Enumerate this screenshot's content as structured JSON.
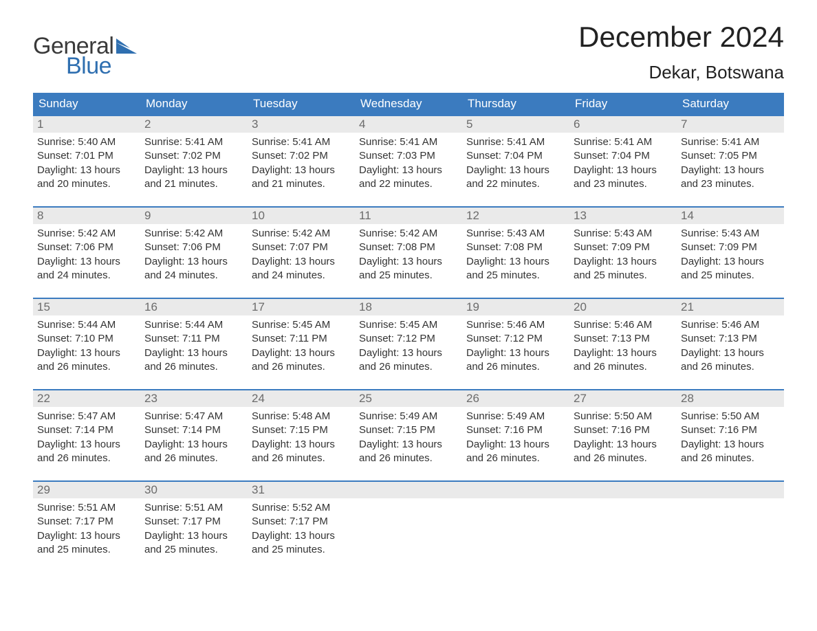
{
  "brand": {
    "word1": "General",
    "word2": "Blue",
    "word1_color": "#3a3a3a",
    "word2_color": "#2f6fb0",
    "flag_color": "#2f6fb0"
  },
  "header": {
    "title": "December 2024",
    "location": "Dekar, Botswana"
  },
  "colors": {
    "header_bg": "#3b7bbf",
    "header_text": "#ffffff",
    "week_border": "#3b7bbf",
    "daynum_bg": "#eaeaea",
    "daynum_text": "#6b6b6b",
    "body_text": "#333333",
    "page_bg": "#ffffff"
  },
  "weekdays": [
    "Sunday",
    "Monday",
    "Tuesday",
    "Wednesday",
    "Thursday",
    "Friday",
    "Saturday"
  ],
  "weeks": [
    [
      {
        "n": "1",
        "sunrise": "5:40 AM",
        "sunset": "7:01 PM",
        "daylight": "13 hours and 20 minutes."
      },
      {
        "n": "2",
        "sunrise": "5:41 AM",
        "sunset": "7:02 PM",
        "daylight": "13 hours and 21 minutes."
      },
      {
        "n": "3",
        "sunrise": "5:41 AM",
        "sunset": "7:02 PM",
        "daylight": "13 hours and 21 minutes."
      },
      {
        "n": "4",
        "sunrise": "5:41 AM",
        "sunset": "7:03 PM",
        "daylight": "13 hours and 22 minutes."
      },
      {
        "n": "5",
        "sunrise": "5:41 AM",
        "sunset": "7:04 PM",
        "daylight": "13 hours and 22 minutes."
      },
      {
        "n": "6",
        "sunrise": "5:41 AM",
        "sunset": "7:04 PM",
        "daylight": "13 hours and 23 minutes."
      },
      {
        "n": "7",
        "sunrise": "5:41 AM",
        "sunset": "7:05 PM",
        "daylight": "13 hours and 23 minutes."
      }
    ],
    [
      {
        "n": "8",
        "sunrise": "5:42 AM",
        "sunset": "7:06 PM",
        "daylight": "13 hours and 24 minutes."
      },
      {
        "n": "9",
        "sunrise": "5:42 AM",
        "sunset": "7:06 PM",
        "daylight": "13 hours and 24 minutes."
      },
      {
        "n": "10",
        "sunrise": "5:42 AM",
        "sunset": "7:07 PM",
        "daylight": "13 hours and 24 minutes."
      },
      {
        "n": "11",
        "sunrise": "5:42 AM",
        "sunset": "7:08 PM",
        "daylight": "13 hours and 25 minutes."
      },
      {
        "n": "12",
        "sunrise": "5:43 AM",
        "sunset": "7:08 PM",
        "daylight": "13 hours and 25 minutes."
      },
      {
        "n": "13",
        "sunrise": "5:43 AM",
        "sunset": "7:09 PM",
        "daylight": "13 hours and 25 minutes."
      },
      {
        "n": "14",
        "sunrise": "5:43 AM",
        "sunset": "7:09 PM",
        "daylight": "13 hours and 25 minutes."
      }
    ],
    [
      {
        "n": "15",
        "sunrise": "5:44 AM",
        "sunset": "7:10 PM",
        "daylight": "13 hours and 26 minutes."
      },
      {
        "n": "16",
        "sunrise": "5:44 AM",
        "sunset": "7:11 PM",
        "daylight": "13 hours and 26 minutes."
      },
      {
        "n": "17",
        "sunrise": "5:45 AM",
        "sunset": "7:11 PM",
        "daylight": "13 hours and 26 minutes."
      },
      {
        "n": "18",
        "sunrise": "5:45 AM",
        "sunset": "7:12 PM",
        "daylight": "13 hours and 26 minutes."
      },
      {
        "n": "19",
        "sunrise": "5:46 AM",
        "sunset": "7:12 PM",
        "daylight": "13 hours and 26 minutes."
      },
      {
        "n": "20",
        "sunrise": "5:46 AM",
        "sunset": "7:13 PM",
        "daylight": "13 hours and 26 minutes."
      },
      {
        "n": "21",
        "sunrise": "5:46 AM",
        "sunset": "7:13 PM",
        "daylight": "13 hours and 26 minutes."
      }
    ],
    [
      {
        "n": "22",
        "sunrise": "5:47 AM",
        "sunset": "7:14 PM",
        "daylight": "13 hours and 26 minutes."
      },
      {
        "n": "23",
        "sunrise": "5:47 AM",
        "sunset": "7:14 PM",
        "daylight": "13 hours and 26 minutes."
      },
      {
        "n": "24",
        "sunrise": "5:48 AM",
        "sunset": "7:15 PM",
        "daylight": "13 hours and 26 minutes."
      },
      {
        "n": "25",
        "sunrise": "5:49 AM",
        "sunset": "7:15 PM",
        "daylight": "13 hours and 26 minutes."
      },
      {
        "n": "26",
        "sunrise": "5:49 AM",
        "sunset": "7:16 PM",
        "daylight": "13 hours and 26 minutes."
      },
      {
        "n": "27",
        "sunrise": "5:50 AM",
        "sunset": "7:16 PM",
        "daylight": "13 hours and 26 minutes."
      },
      {
        "n": "28",
        "sunrise": "5:50 AM",
        "sunset": "7:16 PM",
        "daylight": "13 hours and 26 minutes."
      }
    ],
    [
      {
        "n": "29",
        "sunrise": "5:51 AM",
        "sunset": "7:17 PM",
        "daylight": "13 hours and 25 minutes."
      },
      {
        "n": "30",
        "sunrise": "5:51 AM",
        "sunset": "7:17 PM",
        "daylight": "13 hours and 25 minutes."
      },
      {
        "n": "31",
        "sunrise": "5:52 AM",
        "sunset": "7:17 PM",
        "daylight": "13 hours and 25 minutes."
      },
      null,
      null,
      null,
      null
    ]
  ],
  "labels": {
    "sunrise": "Sunrise:",
    "sunset": "Sunset:",
    "daylight": "Daylight:"
  }
}
